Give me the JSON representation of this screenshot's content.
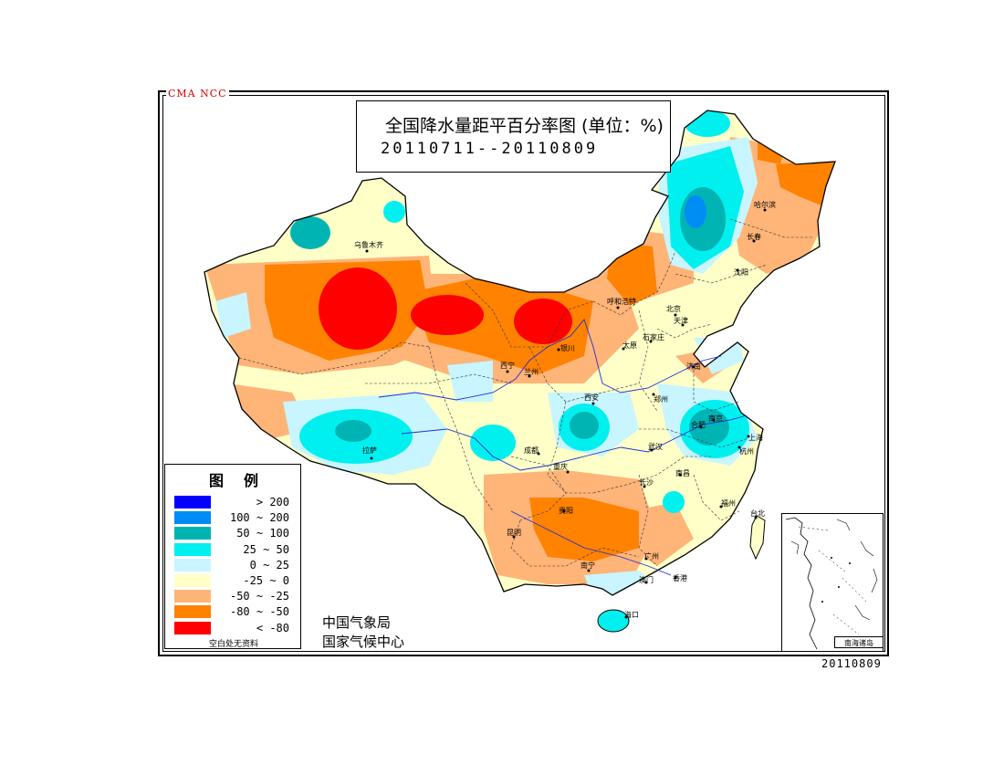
{
  "watermark": "CMA NCC",
  "title": {
    "main": "全国降水量距平百分率图 (单位：%)",
    "period": "20110711--20110809"
  },
  "legend": {
    "title": "图例",
    "items": [
      {
        "label": "> 200",
        "color": "#0000ff"
      },
      {
        "label": "100 ~ 200",
        "color": "#008cf5"
      },
      {
        "label": "50 ~ 100",
        "color": "#00b4b4"
      },
      {
        "label": "25 ~ 50",
        "color": "#00f0f0"
      },
      {
        "label": "0 ~ 25",
        "color": "#c8f5ff"
      },
      {
        "label": "-25 ~ 0",
        "color": "#ffffc8"
      },
      {
        "label": "-50 ~ -25",
        "color": "#ffb478"
      },
      {
        "label": "-80 ~ -50",
        "color": "#ff8200"
      },
      {
        "label": "< -80",
        "color": "#ff0000"
      }
    ],
    "note": "空白处无资料"
  },
  "agency": {
    "line1": "中国气象局",
    "line2": "国家气候中心"
  },
  "inset": {
    "label": "南海诸岛"
  },
  "footer_date": "20110809",
  "cities": [
    {
      "name": "乌鲁木齐"
    },
    {
      "name": "哈尔滨"
    },
    {
      "name": "长春"
    },
    {
      "name": "沈阳"
    },
    {
      "name": "呼和浩特"
    },
    {
      "name": "北京"
    },
    {
      "name": "天津"
    },
    {
      "name": "石家庄"
    },
    {
      "name": "太原"
    },
    {
      "name": "银川"
    },
    {
      "name": "西宁"
    },
    {
      "name": "兰州"
    },
    {
      "name": "济南"
    },
    {
      "name": "郑州"
    },
    {
      "name": "西安"
    },
    {
      "name": "合肥"
    },
    {
      "name": "南京"
    },
    {
      "name": "上海"
    },
    {
      "name": "杭州"
    },
    {
      "name": "武汉"
    },
    {
      "name": "成都"
    },
    {
      "name": "重庆"
    },
    {
      "name": "拉萨"
    },
    {
      "name": "长沙"
    },
    {
      "name": "南昌"
    },
    {
      "name": "福州"
    },
    {
      "name": "贵阳"
    },
    {
      "name": "昆明"
    },
    {
      "name": "南宁"
    },
    {
      "name": "广州"
    },
    {
      "name": "澳门"
    },
    {
      "name": "香港"
    },
    {
      "name": "台北"
    },
    {
      "name": "海口"
    }
  ]
}
